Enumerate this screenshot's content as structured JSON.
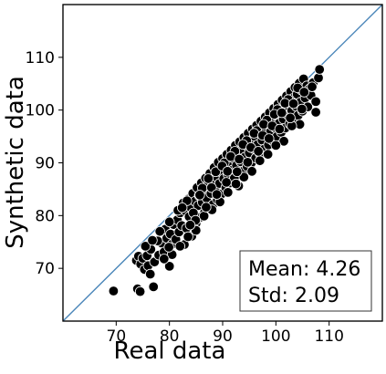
{
  "chart_data": {
    "type": "scatter",
    "xlabel": "Real data",
    "ylabel": "Synthetic data",
    "xlim": [
      60,
      120
    ],
    "ylim": [
      60,
      120
    ],
    "x_ticks": [
      70,
      80,
      90,
      100,
      110
    ],
    "y_ticks": [
      70,
      80,
      90,
      100,
      110
    ],
    "reference_line": "y = x",
    "reference_line_color": "#4a86b9",
    "point_color": "#000000",
    "point_edge_color": "#ffffff",
    "annotation": {
      "lines": [
        "Mean: 4.26",
        "Std: 2.09"
      ],
      "placement": "bottom-right"
    },
    "series": [
      {
        "points": [
          [
            69.5,
            65.7
          ],
          [
            74.0,
            66.1
          ],
          [
            74.5,
            65.6
          ],
          [
            77.0,
            66.5
          ],
          [
            73.8,
            71.5
          ],
          [
            74.2,
            72.3
          ],
          [
            74.6,
            70.8
          ],
          [
            75.0,
            71.9
          ],
          [
            75.3,
            69.8
          ],
          [
            75.8,
            72.4
          ],
          [
            76.0,
            70.5
          ],
          [
            76.5,
            73.6
          ],
          [
            77.2,
            71.2
          ],
          [
            75.5,
            74.2
          ],
          [
            78.0,
            72.5
          ],
          [
            78.5,
            74.8
          ],
          [
            79.0,
            73.1
          ],
          [
            79.5,
            75.7
          ],
          [
            80.0,
            70.4
          ],
          [
            80.5,
            74.6
          ],
          [
            77.8,
            75.2
          ],
          [
            79.2,
            77.4
          ],
          [
            80.2,
            76.5
          ],
          [
            80.8,
            78.3
          ],
          [
            81.2,
            75.5
          ],
          [
            81.5,
            79.2
          ],
          [
            81.8,
            76.9
          ],
          [
            82.0,
            80.5
          ],
          [
            82.3,
            78.1
          ],
          [
            82.6,
            82.4
          ],
          [
            82.8,
            74.5
          ],
          [
            83.0,
            80.9
          ],
          [
            83.2,
            77.6
          ],
          [
            83.5,
            83.1
          ],
          [
            83.7,
            79.8
          ],
          [
            84.0,
            81.6
          ],
          [
            84.2,
            76.1
          ],
          [
            84.4,
            84.2
          ],
          [
            84.6,
            80.4
          ],
          [
            84.8,
            82.7
          ],
          [
            85.0,
            78.5
          ],
          [
            85.2,
            85.3
          ],
          [
            85.4,
            81.9
          ],
          [
            85.6,
            83.8
          ],
          [
            85.8,
            79.7
          ],
          [
            86.0,
            86.2
          ],
          [
            86.2,
            82.5
          ],
          [
            86.4,
            84.9
          ],
          [
            86.6,
            80.6
          ],
          [
            86.8,
            87.1
          ],
          [
            87.0,
            83.3
          ],
          [
            87.2,
            85.7
          ],
          [
            87.4,
            81.4
          ],
          [
            87.6,
            88.0
          ],
          [
            87.8,
            84.2
          ],
          [
            88.0,
            86.5
          ],
          [
            88.2,
            82.1
          ],
          [
            88.4,
            89.1
          ],
          [
            88.6,
            85.0
          ],
          [
            88.8,
            87.4
          ],
          [
            89.0,
            83.0
          ],
          [
            89.2,
            90.1
          ],
          [
            89.4,
            86.1
          ],
          [
            89.6,
            88.3
          ],
          [
            89.8,
            84.1
          ],
          [
            90.0,
            90.8
          ],
          [
            90.2,
            87.0
          ],
          [
            90.4,
            89.2
          ],
          [
            90.6,
            85.3
          ],
          [
            90.8,
            91.6
          ],
          [
            91.0,
            87.8
          ],
          [
            91.2,
            90.0
          ],
          [
            91.4,
            86.2
          ],
          [
            91.6,
            92.4
          ],
          [
            91.8,
            88.6
          ],
          [
            92.0,
            90.9
          ],
          [
            92.2,
            87.1
          ],
          [
            92.4,
            93.3
          ],
          [
            92.6,
            89.5
          ],
          [
            92.8,
            91.7
          ],
          [
            93.0,
            85.6
          ],
          [
            93.2,
            94.0
          ],
          [
            93.4,
            90.2
          ],
          [
            93.6,
            92.5
          ],
          [
            93.8,
            88.4
          ],
          [
            94.0,
            94.8
          ],
          [
            94.2,
            91.1
          ],
          [
            94.4,
            93.3
          ],
          [
            94.6,
            89.3
          ],
          [
            94.8,
            95.6
          ],
          [
            95.0,
            91.9
          ],
          [
            95.2,
            94.2
          ],
          [
            95.4,
            90.0
          ],
          [
            95.6,
            96.4
          ],
          [
            95.8,
            92.7
          ],
          [
            96.0,
            95.0
          ],
          [
            96.2,
            90.9
          ],
          [
            96.4,
            97.1
          ],
          [
            96.6,
            93.5
          ],
          [
            96.8,
            95.8
          ],
          [
            97.0,
            91.8
          ],
          [
            97.2,
            97.9
          ],
          [
            97.4,
            94.3
          ],
          [
            97.6,
            96.6
          ],
          [
            97.8,
            92.6
          ],
          [
            98.0,
            98.7
          ],
          [
            98.2,
            95.1
          ],
          [
            98.4,
            97.4
          ],
          [
            98.6,
            93.4
          ],
          [
            98.8,
            99.5
          ],
          [
            99.0,
            95.9
          ],
          [
            99.2,
            98.2
          ],
          [
            99.4,
            94.2
          ],
          [
            99.6,
            100.3
          ],
          [
            99.8,
            96.7
          ],
          [
            100.0,
            99.0
          ],
          [
            100.2,
            95.0
          ],
          [
            100.4,
            101.1
          ],
          [
            100.6,
            97.5
          ],
          [
            100.8,
            99.8
          ],
          [
            101.0,
            95.8
          ],
          [
            101.2,
            101.9
          ],
          [
            101.4,
            98.3
          ],
          [
            101.6,
            100.6
          ],
          [
            101.8,
            96.6
          ],
          [
            102.0,
            102.7
          ],
          [
            102.2,
            99.1
          ],
          [
            102.4,
            101.4
          ],
          [
            102.6,
            97.4
          ],
          [
            102.8,
            103.5
          ],
          [
            103.0,
            99.9
          ],
          [
            103.2,
            102.2
          ],
          [
            103.4,
            98.2
          ],
          [
            103.6,
            104.3
          ],
          [
            103.8,
            100.7
          ],
          [
            104.0,
            103.0
          ],
          [
            104.2,
            99.0
          ],
          [
            104.4,
            105.1
          ],
          [
            104.6,
            101.5
          ],
          [
            104.8,
            103.8
          ],
          [
            105.0,
            99.8
          ],
          [
            105.2,
            105.9
          ],
          [
            105.5,
            102.3
          ],
          [
            105.8,
            104.6
          ],
          [
            106.0,
            100.6
          ],
          [
            106.3,
            104.0
          ],
          [
            106.6,
            102.8
          ],
          [
            107.0,
            105.2
          ],
          [
            107.5,
            101.6
          ],
          [
            108.0,
            106.1
          ],
          [
            108.2,
            107.7
          ],
          [
            104.5,
            97.3
          ],
          [
            103.0,
            97.0
          ],
          [
            101.5,
            94.1
          ],
          [
            100.0,
            93.3
          ],
          [
            98.5,
            91.6
          ],
          [
            97.0,
            90.4
          ],
          [
            95.5,
            88.4
          ],
          [
            94.0,
            87.3
          ],
          [
            92.5,
            86.0
          ],
          [
            91.0,
            84.4
          ],
          [
            89.5,
            82.6
          ],
          [
            88.0,
            81.1
          ],
          [
            86.5,
            79.9
          ],
          [
            85.0,
            77.2
          ],
          [
            83.5,
            76.0
          ],
          [
            82.0,
            74.2
          ],
          [
            80.5,
            72.6
          ],
          [
            79.0,
            71.8
          ],
          [
            84.5,
            80.5
          ],
          [
            86.2,
            85.2
          ],
          [
            88.7,
            88.3
          ],
          [
            90.3,
            90.0
          ],
          [
            92.3,
            92.2
          ],
          [
            94.5,
            94.2
          ],
          [
            96.4,
            96.1
          ],
          [
            98.3,
            98.1
          ],
          [
            100.3,
            100.1
          ],
          [
            102.3,
            102.0
          ],
          [
            104.1,
            104.2
          ],
          [
            83.3,
            82.8
          ],
          [
            81.6,
            81.0
          ],
          [
            87.3,
            87.0
          ],
          [
            89.9,
            89.4
          ],
          [
            91.5,
            91.2
          ],
          [
            93.8,
            93.5
          ],
          [
            95.9,
            95.6
          ],
          [
            97.7,
            97.3
          ],
          [
            99.7,
            99.2
          ],
          [
            101.7,
            101.3
          ],
          [
            80.0,
            78.8
          ],
          [
            78.2,
            77.0
          ],
          [
            76.8,
            75.3
          ],
          [
            82.4,
            81.5
          ],
          [
            85.7,
            83.9
          ],
          [
            87.9,
            85.3
          ],
          [
            90.9,
            88.4
          ],
          [
            93.1,
            90.7
          ],
          [
            95.3,
            92.9
          ],
          [
            97.5,
            95.2
          ],
          [
            99.3,
            97.0
          ],
          [
            101.1,
            99.5
          ],
          [
            103.3,
            101.2
          ],
          [
            105.3,
            103.4
          ],
          [
            106.8,
            104.4
          ],
          [
            84.9,
            79.1
          ],
          [
            86.9,
            81.6
          ],
          [
            88.9,
            84.0
          ],
          [
            90.7,
            86.3
          ],
          [
            92.7,
            88.3
          ],
          [
            94.7,
            90.1
          ],
          [
            96.7,
            92.2
          ],
          [
            98.7,
            94.6
          ],
          [
            100.7,
            96.4
          ],
          [
            102.7,
            98.5
          ],
          [
            104.9,
            100.2
          ],
          [
            107.5,
            99.6
          ],
          [
            76.4,
            68.9
          ],
          [
            79.9,
            74.0
          ],
          [
            83.9,
            78.2
          ]
        ]
      }
    ]
  }
}
